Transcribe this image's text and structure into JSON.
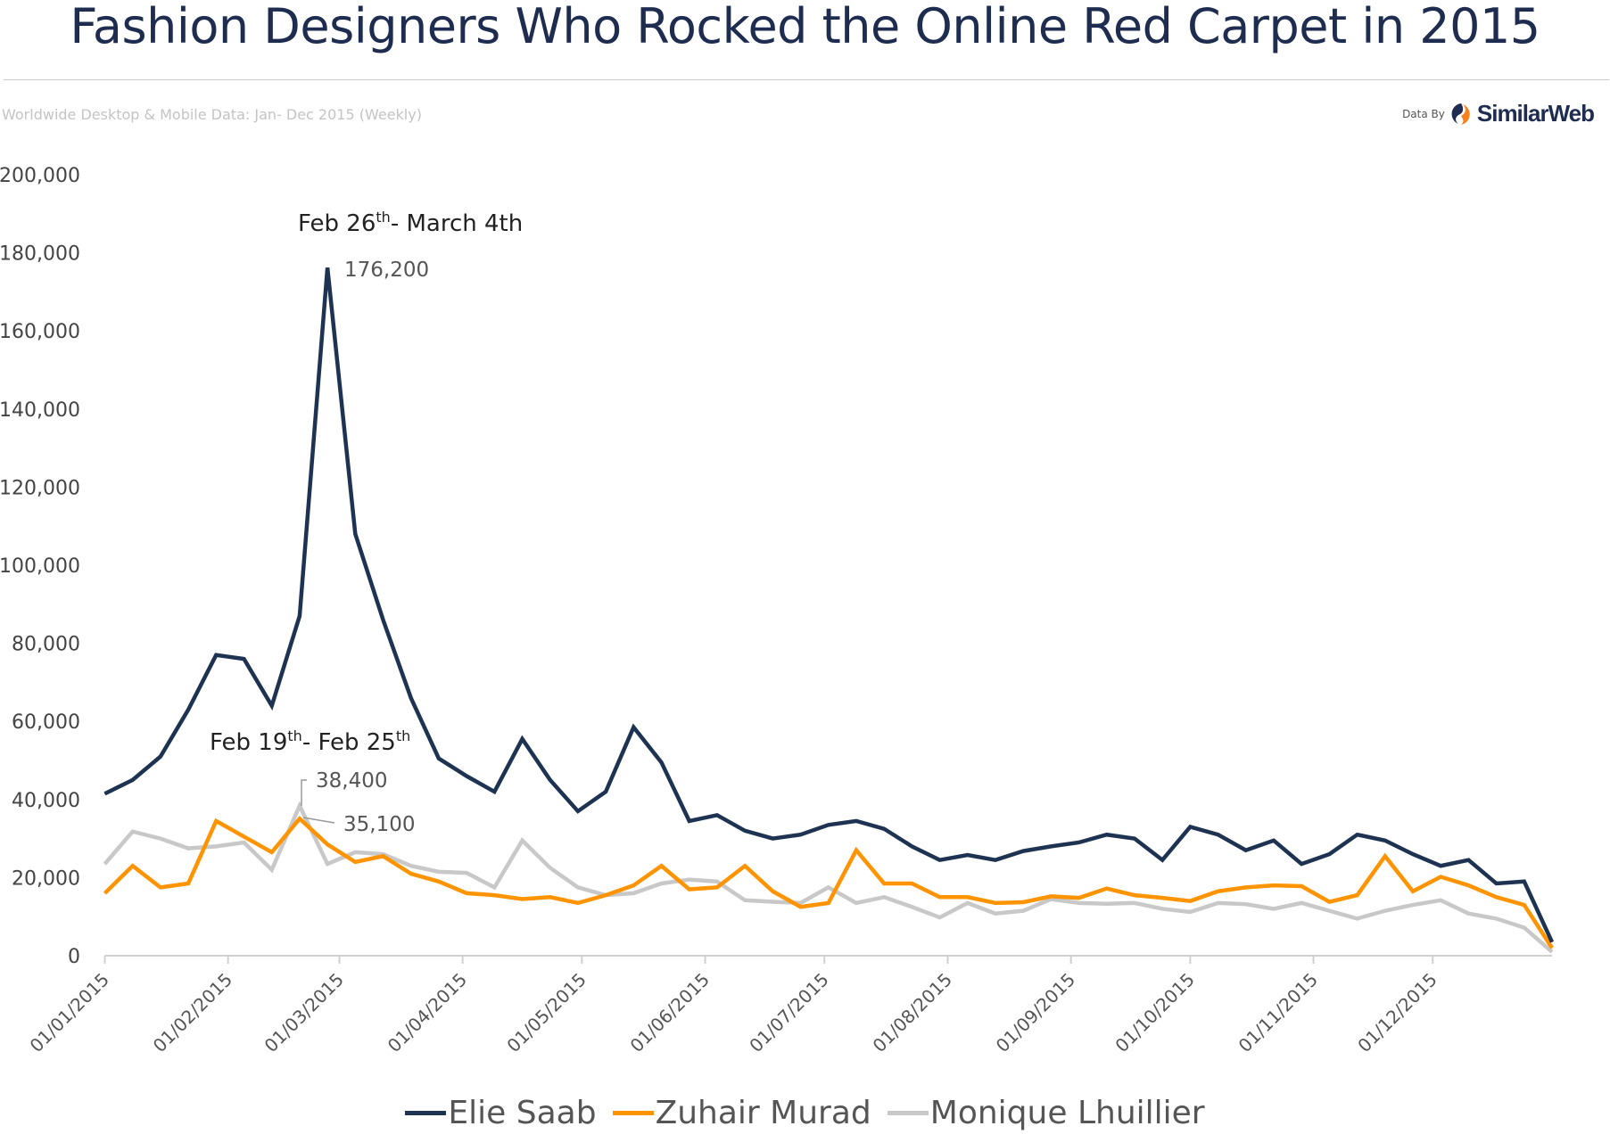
{
  "header": {
    "title": "Fashion Designers Who Rocked the Online Red Carpet in 2015",
    "subtitle": "Worldwide Desktop & Mobile Data: Jan- Dec 2015 (Weekly)",
    "brand_prefix": "Data By",
    "brand_name": "SimilarWeb",
    "brand_colors": {
      "dark": "#1e2d4f",
      "orange": "#f5821f"
    }
  },
  "chart_data": {
    "type": "line",
    "title": "Fashion Designers Who Rocked the Online Red Carpet in 2015",
    "xlabel": "",
    "ylabel": "",
    "ylim": [
      0,
      200000
    ],
    "yticks": [
      "0",
      "20,000",
      "40,000",
      "60,000",
      "80,000",
      "100,000",
      "120,000",
      "140,000",
      "160,000",
      "180,000",
      "200,000"
    ],
    "xticks": [
      "01/01/2015",
      "01/02/2015",
      "01/03/2015",
      "01/04/2015",
      "01/05/2015",
      "01/06/2015",
      "01/07/2015",
      "01/08/2015",
      "01/09/2015",
      "01/10/2015",
      "01/11/2015",
      "01/12/2015"
    ],
    "grid": false,
    "legend_position": "bottom",
    "x": [
      "2015-01-01",
      "2015-01-08",
      "2015-01-15",
      "2015-01-22",
      "2015-01-29",
      "2015-02-05",
      "2015-02-12",
      "2015-02-19",
      "2015-02-26",
      "2015-03-05",
      "2015-03-12",
      "2015-03-19",
      "2015-03-26",
      "2015-04-02",
      "2015-04-09",
      "2015-04-16",
      "2015-04-23",
      "2015-04-30",
      "2015-05-07",
      "2015-05-14",
      "2015-05-21",
      "2015-05-28",
      "2015-06-04",
      "2015-06-11",
      "2015-06-18",
      "2015-06-25",
      "2015-07-02",
      "2015-07-09",
      "2015-07-16",
      "2015-07-23",
      "2015-07-30",
      "2015-08-06",
      "2015-08-13",
      "2015-08-20",
      "2015-08-27",
      "2015-09-03",
      "2015-09-10",
      "2015-09-17",
      "2015-09-24",
      "2015-10-01",
      "2015-10-08",
      "2015-10-15",
      "2015-10-22",
      "2015-10-29",
      "2015-11-05",
      "2015-11-12",
      "2015-11-19",
      "2015-11-26",
      "2015-12-03",
      "2015-12-10",
      "2015-12-17",
      "2015-12-24",
      "2015-12-31"
    ],
    "series": [
      {
        "name": "Elie Saab",
        "color": "#1e3352",
        "values": [
          41500,
          45000,
          51000,
          63000,
          77000,
          76000,
          64000,
          87000,
          176200,
          108000,
          86000,
          66000,
          50500,
          46000,
          42000,
          55500,
          45000,
          37000,
          42000,
          58500,
          49500,
          34500,
          36000,
          32000,
          30000,
          31000,
          33500,
          34500,
          32500,
          28000,
          24500,
          25800,
          24500,
          26800,
          28000,
          29000,
          31000,
          30000,
          24500,
          33000,
          31000,
          27000,
          29500,
          23500,
          26000,
          31000,
          29500,
          26000,
          23000,
          24500,
          18500,
          19000,
          3500
        ]
      },
      {
        "name": "Zuhair Murad",
        "color": "#ff9300",
        "values": [
          16000,
          23000,
          17500,
          18500,
          34500,
          30500,
          26500,
          35100,
          28500,
          24000,
          25500,
          21000,
          19000,
          16000,
          15500,
          14500,
          15000,
          13500,
          15500,
          18000,
          23000,
          17000,
          17500,
          23000,
          16500,
          12500,
          13500,
          27000,
          18500,
          18500,
          15000,
          15000,
          13500,
          13700,
          15200,
          14800,
          17200,
          15500,
          14800,
          14000,
          16500,
          17500,
          18000,
          17800,
          13800,
          15500,
          25500,
          16500,
          20200,
          18000,
          15000,
          13000,
          2000
        ]
      },
      {
        "name": "Monique Lhuillier",
        "color": "#c8c8c8",
        "values": [
          23500,
          31800,
          30000,
          27500,
          28000,
          29000,
          22000,
          38400,
          23500,
          26500,
          26000,
          23000,
          21500,
          21200,
          17500,
          29500,
          22500,
          17500,
          15500,
          16000,
          18500,
          19500,
          19000,
          14200,
          13800,
          13500,
          17500,
          13500,
          15000,
          12500,
          9800,
          13500,
          10800,
          11500,
          14500,
          13500,
          13300,
          13500,
          12000,
          11200,
          13500,
          13200,
          12000,
          13500,
          11500,
          9500,
          11500,
          13000,
          14200,
          10800,
          9500,
          7200,
          1000
        ]
      }
    ],
    "annotations": [
      {
        "label": "Feb 26",
        "sup": "th",
        "label_rest": "- March 4th",
        "value": "176,200",
        "series": "Elie Saab",
        "x": "2015-02-26"
      },
      {
        "label": "Feb 19",
        "sup": "th",
        "label_mid": "- Feb 25",
        "sup2": "th",
        "value_a": "38,400",
        "value_b": "35,100",
        "x": "2015-02-19"
      }
    ]
  }
}
